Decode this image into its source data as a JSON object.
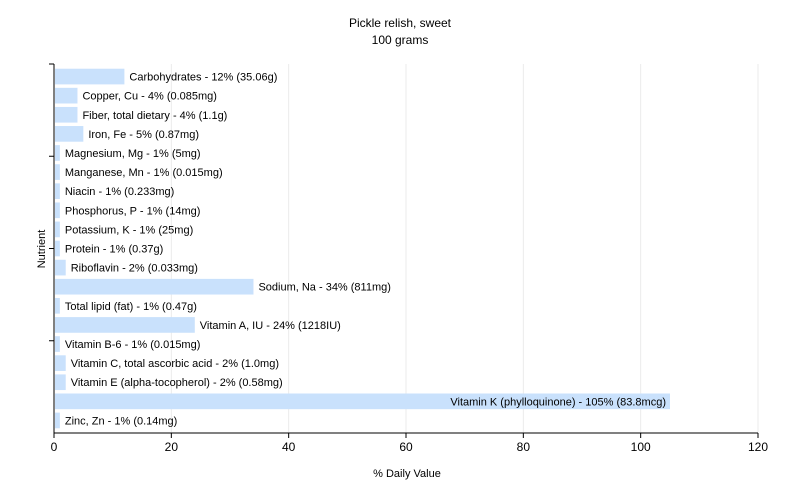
{
  "chart_data": {
    "type": "bar",
    "orientation": "horizontal",
    "title": "Pickle relish, sweet",
    "subtitle": "100 grams",
    "xlabel": "% Daily Value",
    "ylabel": "Nutrient",
    "xlim": [
      0,
      120
    ],
    "xticks": [
      0,
      20,
      40,
      60,
      80,
      100,
      120
    ],
    "grid": true,
    "bar_color": "#c9e1fc",
    "categories": [
      "Carbohydrates",
      "Copper, Cu",
      "Fiber, total dietary",
      "Iron, Fe",
      "Magnesium, Mg",
      "Manganese, Mn",
      "Niacin",
      "Phosphorus, P",
      "Potassium, K",
      "Protein",
      "Riboflavin",
      "Sodium, Na",
      "Total lipid (fat)",
      "Vitamin A, IU",
      "Vitamin B-6",
      "Vitamin C, total ascorbic acid",
      "Vitamin E (alpha-tocopherol)",
      "Vitamin K (phylloquinone)",
      "Zinc, Zn"
    ],
    "values": [
      12,
      4,
      4,
      5,
      1,
      1,
      1,
      1,
      1,
      1,
      2,
      34,
      1,
      24,
      1,
      2,
      2,
      105,
      1
    ],
    "labels": [
      "Carbohydrates - 12% (35.06g)",
      "Copper, Cu - 4% (0.085mg)",
      "Fiber, total dietary - 4% (1.1g)",
      "Iron, Fe - 5% (0.87mg)",
      "Magnesium, Mg - 1% (5mg)",
      "Manganese, Mn - 1% (0.015mg)",
      "Niacin - 1% (0.233mg)",
      "Phosphorus, P - 1% (14mg)",
      "Potassium, K - 1% (25mg)",
      "Protein - 1% (0.37g)",
      "Riboflavin - 2% (0.033mg)",
      "Sodium, Na - 34% (811mg)",
      "Total lipid (fat) - 1% (0.47g)",
      "Vitamin A, IU - 24% (1218IU)",
      "Vitamin B-6 - 1% (0.015mg)",
      "Vitamin C, total ascorbic acid - 2% (1.0mg)",
      "Vitamin E (alpha-tocopherol) - 2% (0.58mg)",
      "Vitamin K (phylloquinone) - 105% (83.8mcg)",
      "Zinc, Zn - 1% (0.14mg)"
    ]
  }
}
